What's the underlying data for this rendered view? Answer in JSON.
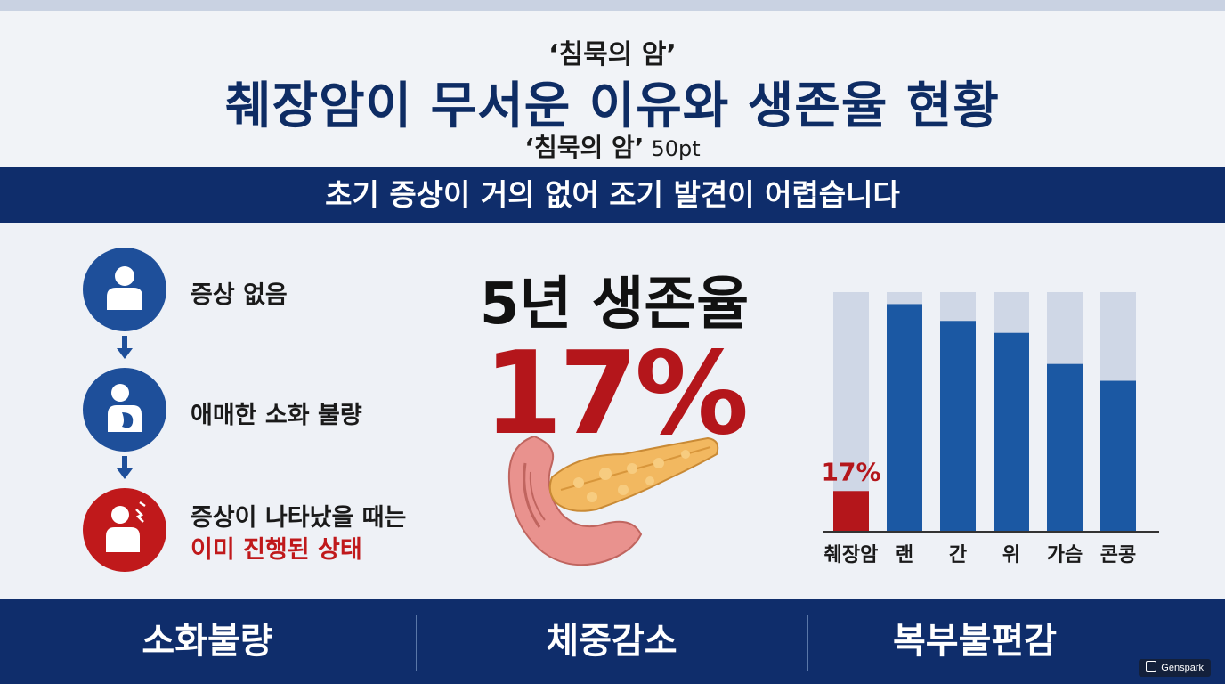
{
  "header": {
    "kicker": "‘침묵의 암’",
    "title": "췌장암이 무서운 이유와 생존율 현황",
    "subkicker": "‘침묵의 암’",
    "subkicker_size": "50pt"
  },
  "banner": {
    "text": "초기 증상이 거의 없어 조기 발견이 어렵습니다"
  },
  "steps": [
    {
      "label": "증상 없음",
      "icon": "person-icon"
    },
    {
      "label": "애매한 소화 불량",
      "icon": "stomach-icon"
    },
    {
      "label": "증상이 나타났을 때는",
      "label_highlight": "이미 진행된 상태",
      "icon": "pain-icon"
    }
  ],
  "survival": {
    "label": "5년 생존율",
    "value": "17%"
  },
  "chart_data": {
    "type": "bar",
    "categories": [
      "췌장암",
      "랜",
      "간",
      "위",
      "가슴",
      "콘콩"
    ],
    "values": [
      17,
      95,
      88,
      83,
      70,
      63
    ],
    "ylim": [
      0,
      100
    ],
    "data_labels": [
      "17%",
      "",
      "",
      "",
      "",
      ""
    ],
    "colors": {
      "highlight": "#b4161b",
      "bar": "#1b58a3",
      "track": "#cfd7e6"
    }
  },
  "footer": {
    "items": [
      "소화불량",
      "체중감소",
      "복부불편감"
    ]
  },
  "brand": {
    "name": "Genspark"
  },
  "colors": {
    "navy": "#0f2d6b",
    "red": "#c0191b",
    "blue": "#1e4f9a"
  }
}
